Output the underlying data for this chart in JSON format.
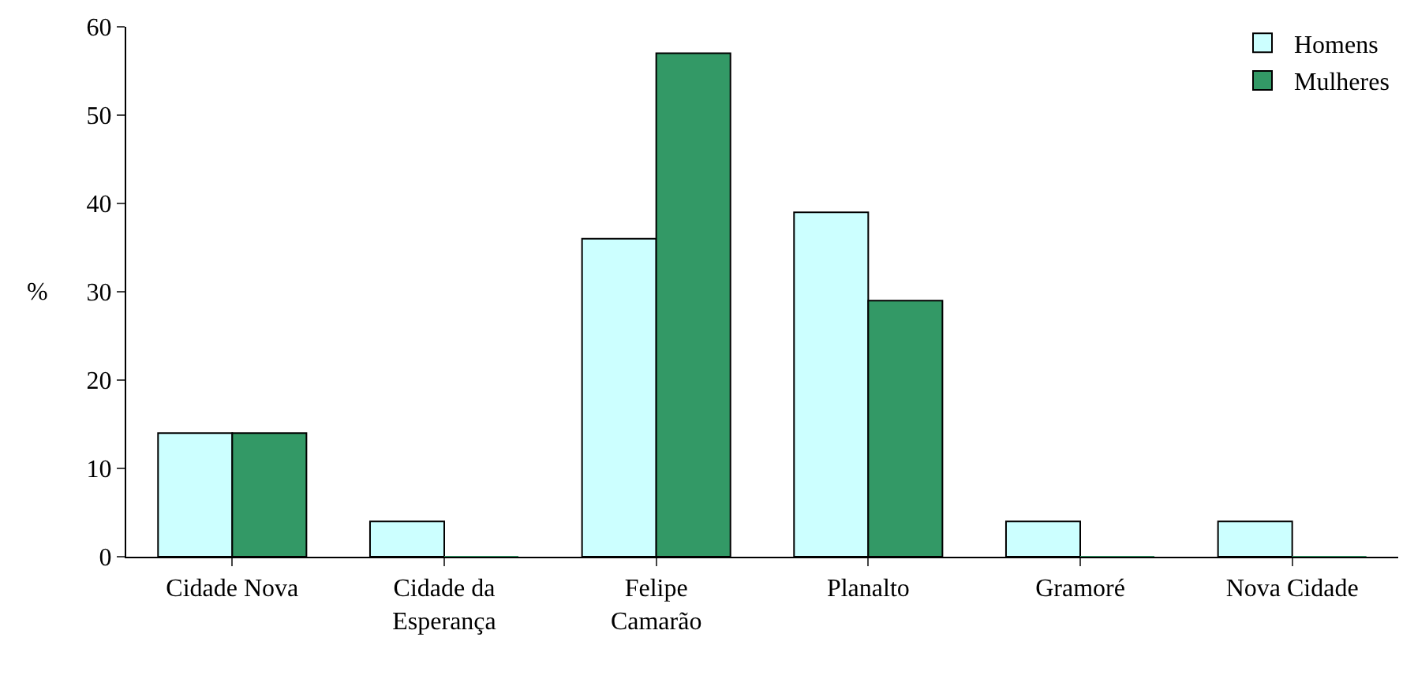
{
  "chart_data": {
    "type": "bar",
    "ylabel": "%",
    "categories": [
      "Cidade Nova",
      "Cidade da Esperança",
      "Felipe Camarão",
      "Planalto",
      "Gramoré",
      "Nova Cidade"
    ],
    "series": [
      {
        "name": "Homens",
        "color": "#ccffff",
        "values": [
          14,
          4,
          36,
          39,
          4,
          4
        ]
      },
      {
        "name": "Mulheres",
        "color": "#339966",
        "values": [
          14,
          0,
          57,
          29,
          0,
          0
        ]
      }
    ],
    "ylim": [
      0,
      60
    ],
    "yticks": [
      0,
      10,
      20,
      30,
      40,
      50,
      60
    ],
    "grid": false,
    "legend": "top right"
  }
}
